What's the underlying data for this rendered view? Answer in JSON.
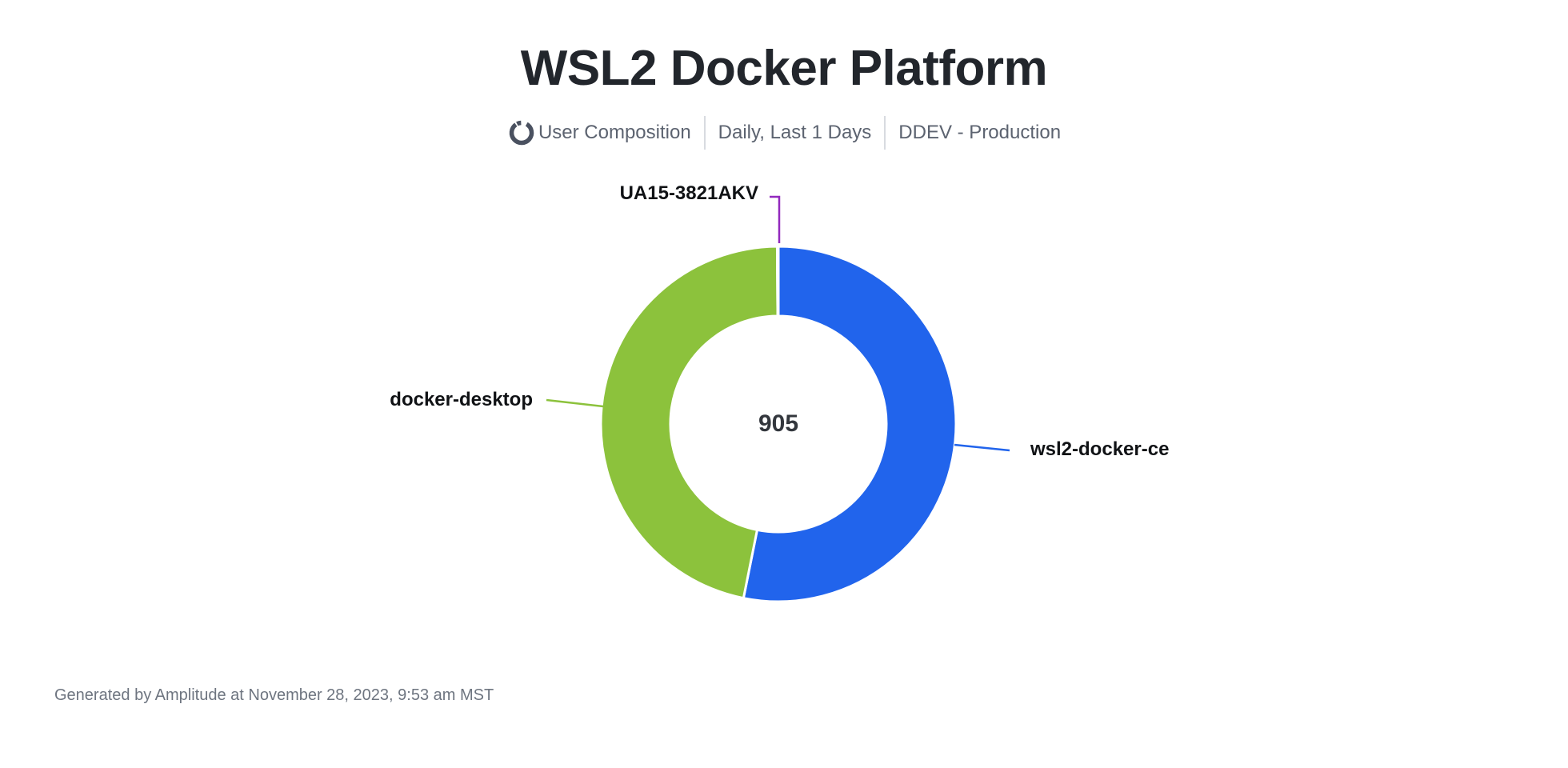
{
  "header": {
    "title": "WSL2 Docker Platform",
    "chart_type_label": "User Composition",
    "date_range": "Daily, Last 1 Days",
    "project": "DDEV - Production"
  },
  "chart_data": {
    "type": "pie",
    "donut": true,
    "title": "WSL2 Docker Platform",
    "center_total": "905",
    "total": 905,
    "start_angle": "top",
    "direction": "clockwise",
    "inner_radius_ratio": 0.61,
    "legend_position": "callout-labels",
    "slices": [
      {
        "label": "wsl2-docker-ce",
        "value": 481,
        "color": "#2164EC"
      },
      {
        "label": "docker-desktop",
        "value": 423,
        "color": "#8CC23C"
      },
      {
        "label": "UA15-3821AKV",
        "value": 1,
        "color": "#9229BE"
      }
    ]
  },
  "footer": {
    "generated": "Generated by Amplitude at November 28, 2023, 9:53 am MST"
  },
  "ui_colors": {
    "title_text": "#22262C",
    "subtitle_text": "#5C6370",
    "divider": "#D8DBE0",
    "icon": "#4A5160",
    "slice_label_text": "#101215",
    "center_value_text": "#33373D",
    "footer_text": "#6E7580",
    "background": "#FFFFFF"
  }
}
